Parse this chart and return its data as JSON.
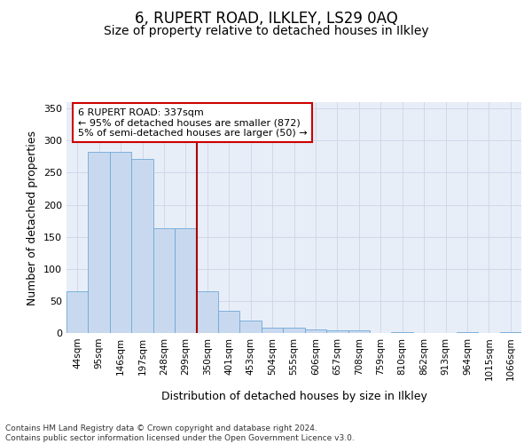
{
  "title": "6, RUPERT ROAD, ILKLEY, LS29 0AQ",
  "subtitle": "Size of property relative to detached houses in Ilkley",
  "xlabel": "Distribution of detached houses by size in Ilkley",
  "ylabel": "Number of detached properties",
  "categories": [
    "44sqm",
    "95sqm",
    "146sqm",
    "197sqm",
    "248sqm",
    "299sqm",
    "350sqm",
    "401sqm",
    "453sqm",
    "504sqm",
    "555sqm",
    "606sqm",
    "657sqm",
    "708sqm",
    "759sqm",
    "810sqm",
    "862sqm",
    "913sqm",
    "964sqm",
    "1015sqm",
    "1066sqm"
  ],
  "values": [
    65,
    282,
    282,
    271,
    163,
    163,
    65,
    35,
    20,
    8,
    8,
    6,
    4,
    4,
    0,
    2,
    0,
    0,
    2,
    0,
    2
  ],
  "bar_color": "#c8d9ef",
  "bar_edge_color": "#6fa8d6",
  "vline_x_index": 6,
  "vline_color": "#aa0000",
  "annotation_text": "6 RUPERT ROAD: 337sqm\n← 95% of detached houses are smaller (872)\n5% of semi-detached houses are larger (50) →",
  "annotation_box_color": "#ffffff",
  "annotation_box_edge_color": "#cc0000",
  "ylim": [
    0,
    360
  ],
  "yticks": [
    0,
    50,
    100,
    150,
    200,
    250,
    300,
    350
  ],
  "grid_color": "#d0d8ea",
  "bg_color": "#e8eef8",
  "footer": "Contains HM Land Registry data © Crown copyright and database right 2024.\nContains public sector information licensed under the Open Government Licence v3.0.",
  "title_fontsize": 12,
  "subtitle_fontsize": 10,
  "tick_fontsize": 7.5,
  "ylabel_fontsize": 9,
  "xlabel_fontsize": 9,
  "annotation_fontsize": 8,
  "footer_fontsize": 6.5
}
